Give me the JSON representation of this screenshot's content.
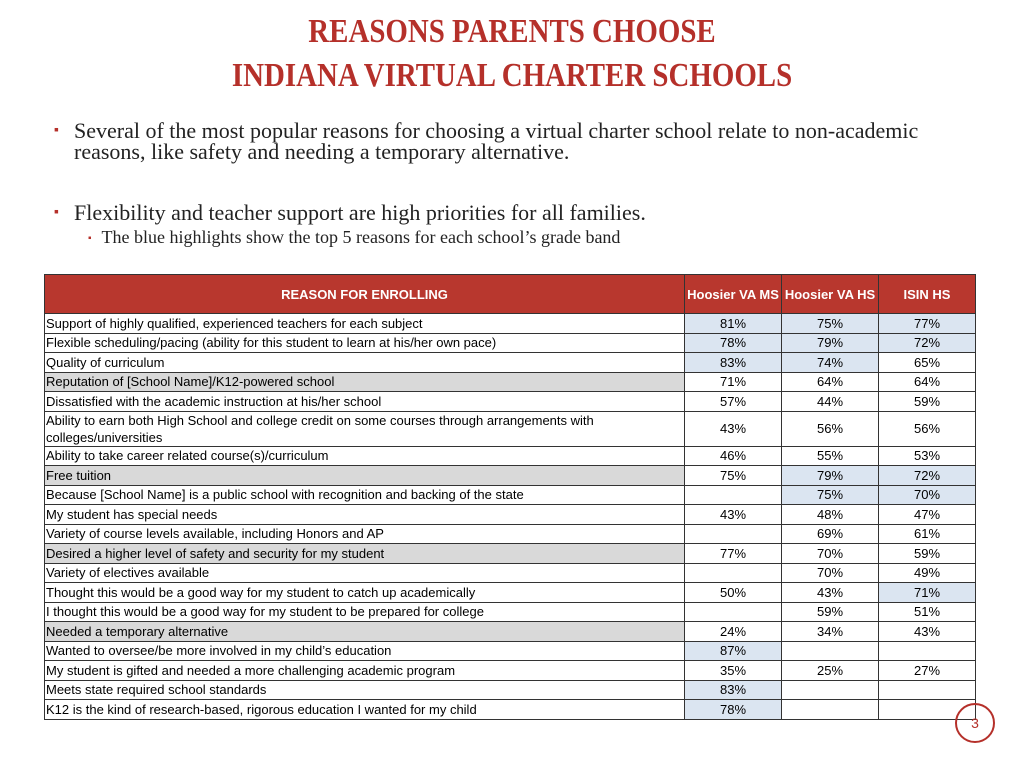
{
  "header": {
    "title_lines": [
      "REASONS PARENTS CHOOSE",
      "INDIANA VIRTUAL CHARTER SCHOOLS"
    ]
  },
  "bullets": [
    {
      "text": "Several of the most popular reasons for choosing a virtual charter school relate to non-academic reasons, like safety and needing a temporary alternative."
    },
    {
      "text": "Flexibility and teacher support are high priorities for all families.",
      "sub": [
        "The blue highlights show the top 5 reasons for each school’s grade band"
      ]
    }
  ],
  "table": {
    "columns": [
      "REASON FOR ENROLLING",
      "Hoosier VA MS",
      "Hoosier VA HS",
      "ISIN HS"
    ],
    "rows": [
      [
        "Support of highly qualified, experienced teachers for each subject",
        "81%",
        "75%",
        "77%"
      ],
      [
        "Flexible scheduling/pacing (ability for this student to learn at his/her own pace)",
        "78%",
        "79%",
        "72%"
      ],
      [
        "Quality of curriculum",
        "83%",
        "74%",
        "65%"
      ],
      [
        "Reputation of [School Name]/K12-powered school",
        "71%",
        "64%",
        "64%"
      ],
      [
        "Dissatisfied with the academic instruction at his/her school",
        "57%",
        "44%",
        "59%"
      ],
      [
        "Ability to earn both High School and college credit on some courses through arrangements with colleges/universities",
        "43%",
        "56%",
        "56%"
      ],
      [
        "Ability to take career related course(s)/curriculum",
        "46%",
        "55%",
        "53%"
      ],
      [
        "Free tuition",
        "75%",
        "79%",
        "72%"
      ],
      [
        "Because [School Name] is a public school with recognition and backing of the state",
        null,
        "75%",
        "70%"
      ],
      [
        "My student has special needs",
        "43%",
        "48%",
        "47%"
      ],
      [
        "Variety of course levels available, including Honors and AP",
        null,
        "69%",
        "61%"
      ],
      [
        "Desired a higher level of safety and security for my student",
        "77%",
        "70%",
        "59%"
      ],
      [
        "Variety of electives available",
        null,
        "70%",
        "49%"
      ],
      [
        "Thought this would be a good way for my student to catch up academically",
        "50%",
        "43%",
        "71%"
      ],
      [
        "I thought this would be a good way for my student to be prepared for college",
        null,
        "59%",
        "51%"
      ],
      [
        "Needed a temporary alternative",
        "24%",
        "34%",
        "43%"
      ],
      [
        "Wanted to oversee/be more involved in my child’s education",
        "87%",
        null,
        null
      ],
      [
        "My student is gifted and needed a more challenging academic program",
        "35%",
        "25%",
        "27%"
      ],
      [
        "Meets state required school standards",
        "83%",
        null,
        null
      ],
      [
        "K12 is the kind of research-based, rigorous education I wanted for my child",
        "78%",
        null,
        null
      ]
    ]
  },
  "slide_number": "3"
}
